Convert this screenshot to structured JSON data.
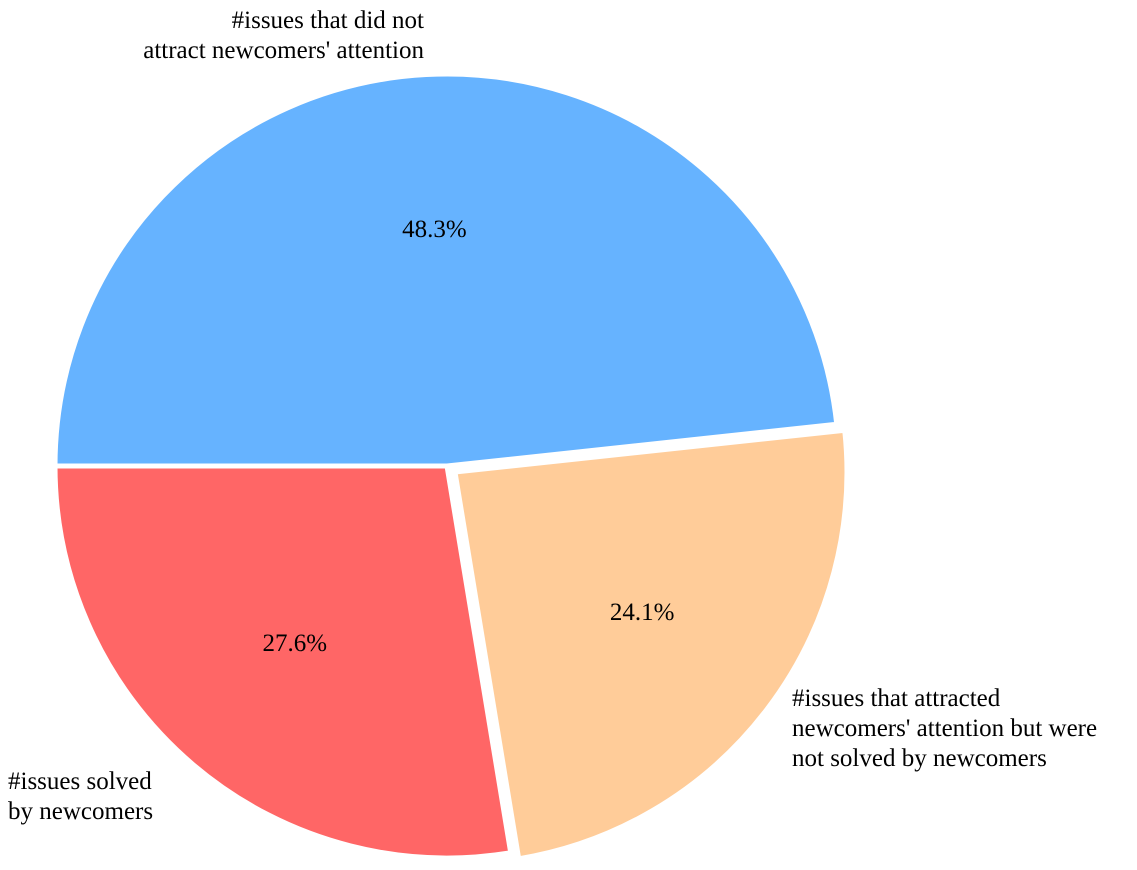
{
  "chart_data": {
    "type": "pie",
    "slices": [
      {
        "name": "issues-not-attracting-attention",
        "label_lines": [
          "#issues that did not",
          "attract newcomers' attention"
        ],
        "value": 48.3,
        "pct_label": "48.3%",
        "color": "#66b3ff"
      },
      {
        "name": "issues-attracted-not-solved",
        "label_lines": [
          "#issues that attracted",
          "newcomers' attention but were",
          "not solved by newcomers"
        ],
        "value": 24.1,
        "pct_label": "24.1%",
        "color": "#ffcc99"
      },
      {
        "name": "issues-solved-by-newcomers",
        "label_lines": [
          "#issues solved",
          "by newcomers"
        ],
        "value": 27.6,
        "pct_label": "27.6%",
        "color": "#ff6666"
      }
    ],
    "start_angle_deg": 180,
    "direction": "clockwise",
    "slice_separator_color": "#ffffff"
  }
}
